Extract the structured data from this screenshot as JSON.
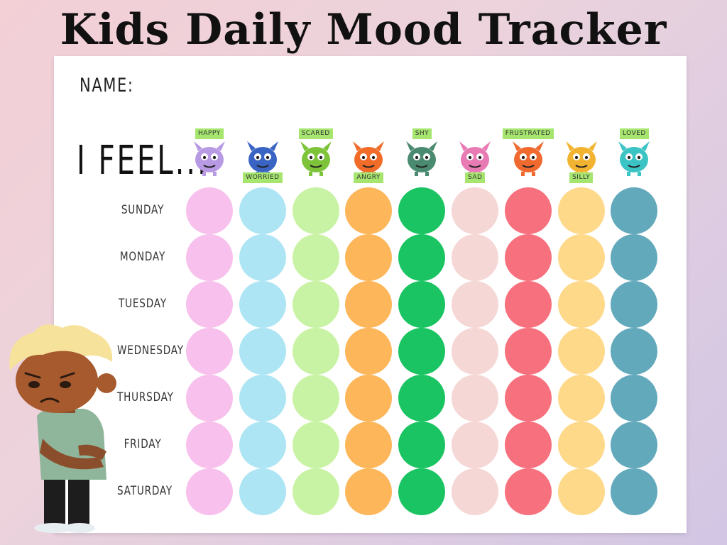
{
  "title": "Kids Daily Mood Tracker",
  "name_label": "NAME:",
  "feel_label": "I FEEL...",
  "days": [
    "SUNDAY",
    "MONDAY",
    "TUESDAY",
    "WEDNESDAY",
    "THURSDAY",
    "FRIDAY",
    "SATURDAY"
  ],
  "moods": [
    {
      "label": "HAPPY",
      "tag_pos": "top",
      "color": "#f8c0ec",
      "monster_color": "#b89ae4"
    },
    {
      "label": "WORRIED",
      "tag_pos": "bottom",
      "color": "#aee5f4",
      "monster_color": "#3a64c4"
    },
    {
      "label": "SCARED",
      "tag_pos": "top",
      "color": "#c9f3a4",
      "monster_color": "#7ec43a"
    },
    {
      "label": "ANGRY",
      "tag_pos": "bottom",
      "color": "#fdb659",
      "monster_color": "#f06c28"
    },
    {
      "label": "SHY",
      "tag_pos": "top",
      "color": "#1ac462",
      "monster_color": "#4a8a70"
    },
    {
      "label": "SAD",
      "tag_pos": "bottom",
      "color": "#f5d7d6",
      "monster_color": "#e87ab4"
    },
    {
      "label": "FRUSTRATED",
      "tag_pos": "top",
      "color": "#f7707d",
      "monster_color": "#f06a30"
    },
    {
      "label": "SILLY",
      "tag_pos": "bottom",
      "color": "#fed98a",
      "monster_color": "#f2b430"
    },
    {
      "label": "LOVED",
      "tag_pos": "top",
      "color": "#62a9bc",
      "monster_color": "#3cc4c4"
    }
  ]
}
